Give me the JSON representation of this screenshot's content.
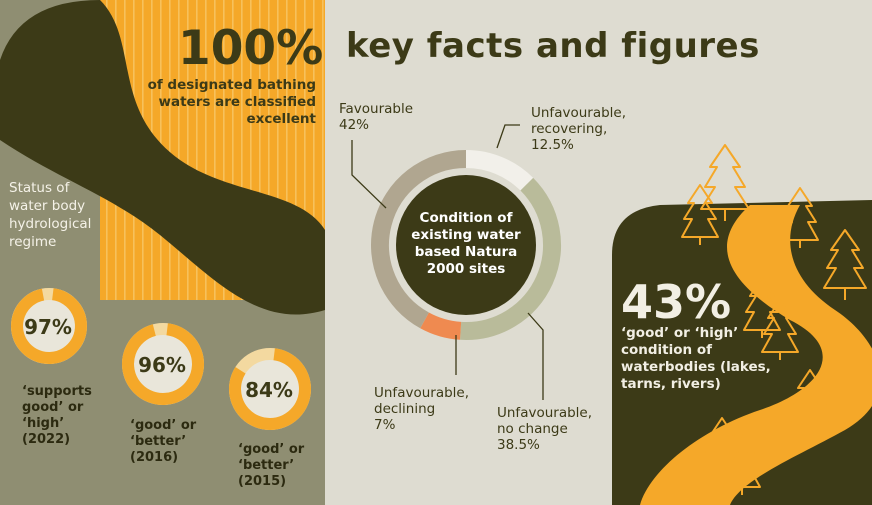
{
  "title": "key facts and figures",
  "bathing": {
    "value": "100%",
    "line1": "of designated bathing",
    "line2": "waters are classified",
    "line3": "excellent"
  },
  "hydro": {
    "heading_lines": [
      "Status of",
      "water body",
      "hydrological",
      "regime"
    ],
    "rings": [
      {
        "value": "97%",
        "fraction": 0.97,
        "caption_lines": [
          "‘supports",
          "good’ or",
          "‘high’",
          "(2022)"
        ]
      },
      {
        "value": "96%",
        "fraction": 0.96,
        "caption_lines": [
          "‘good’ or",
          "‘better’",
          "(2016)"
        ]
      },
      {
        "value": "84%",
        "fraction": 0.84,
        "caption_lines": [
          "‘good’ or",
          "‘better’",
          "(2015)"
        ]
      }
    ]
  },
  "natura": {
    "center_lines": [
      "Condition of",
      "existing water",
      "based Natura",
      "2000 sites"
    ],
    "segments": [
      {
        "name_lines": [
          "Unfavourable,",
          "recovering,"
        ],
        "value_text": "12.5%",
        "value": 12.5,
        "color": "#f2f0ea"
      },
      {
        "name_lines": [
          "Unfavourable,",
          "no change"
        ],
        "value_text": "38.5%",
        "value": 38.5,
        "color": "#b9bb9a"
      },
      {
        "name_lines": [
          "Unfavourable,",
          "declining"
        ],
        "value_text": "7%",
        "value": 7,
        "color": "#ef8a50"
      },
      {
        "name_lines": [
          "Favourable"
        ],
        "value_text": "42%",
        "value": 42,
        "color": "#b0a690"
      }
    ]
  },
  "waterbodies": {
    "value": "43%",
    "caption_lines": [
      "‘good’ or ‘high’",
      "condition of",
      "waterbodies (lakes,",
      "tarns, rivers)"
    ]
  },
  "colors": {
    "dark_olive": "#3c3a17",
    "orange": "#f5a829",
    "gray_green": "#8f8e72",
    "background": "#dedcd1"
  }
}
